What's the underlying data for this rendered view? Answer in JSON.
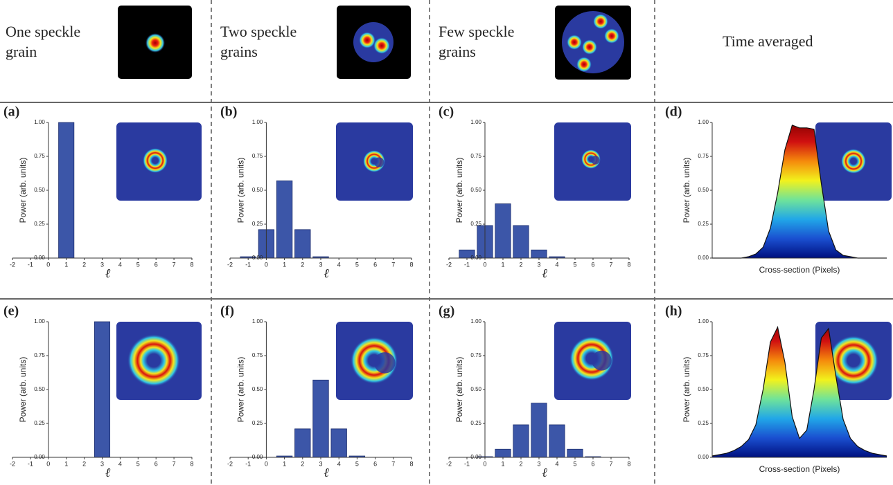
{
  "header": {
    "columns": [
      {
        "lines": [
          "One speckle",
          "grain"
        ]
      },
      {
        "lines": [
          "Two speckle",
          "grains"
        ]
      },
      {
        "lines": [
          "Few speckle",
          "grains"
        ]
      },
      {
        "lines": [
          "Time averaged"
        ]
      }
    ]
  },
  "chart_data": [
    {
      "type": "bar",
      "label": "(a)",
      "x": [
        1
      ],
      "values": [
        1.0
      ],
      "color": "#3c56a8",
      "xlim": [
        -2,
        8
      ],
      "xticks": [
        -2,
        -1,
        0,
        1,
        2,
        3,
        4,
        5,
        6,
        7,
        8
      ],
      "ylim": [
        0,
        1
      ],
      "yticks": [
        {
          "value": 0,
          "label": "0.00"
        },
        {
          "value": 0.25,
          "label": "0.25"
        },
        {
          "value": 0.5,
          "label": "0.50"
        },
        {
          "value": 0.75,
          "label": "0.75"
        },
        {
          "value": 1,
          "label": "1.00"
        }
      ],
      "xlabel": "ℓ",
      "ylabel": "Power (arb. units)"
    },
    {
      "type": "bar",
      "label": "(b)",
      "x": [
        -1,
        0,
        1,
        2,
        3
      ],
      "values": [
        0.01,
        0.21,
        0.57,
        0.21,
        0.01
      ],
      "color": "#3c56a8",
      "xlim": [
        -2,
        8
      ],
      "xticks": [
        -2,
        -1,
        0,
        1,
        2,
        3,
        4,
        5,
        6,
        7,
        8
      ],
      "ylim": [
        0,
        1
      ],
      "yticks": [
        {
          "value": 0,
          "label": "0.00"
        },
        {
          "value": 0.25,
          "label": "0.25"
        },
        {
          "value": 0.5,
          "label": "0.50"
        },
        {
          "value": 0.75,
          "label": "0.75"
        },
        {
          "value": 1,
          "label": "1.00"
        }
      ],
      "xlabel": "ℓ",
      "ylabel": "Power (arb. units)"
    },
    {
      "type": "bar",
      "label": "(c)",
      "x": [
        -1,
        0,
        1,
        2,
        3,
        4
      ],
      "values": [
        0.06,
        0.24,
        0.4,
        0.24,
        0.06,
        0.01
      ],
      "color": "#3c56a8",
      "xlim": [
        -2,
        8
      ],
      "xticks": [
        -2,
        -1,
        0,
        1,
        2,
        3,
        4,
        5,
        6,
        7,
        8
      ],
      "ylim": [
        0,
        1
      ],
      "yticks": [
        {
          "value": 0,
          "label": "0.00"
        },
        {
          "value": 0.25,
          "label": "0.25"
        },
        {
          "value": 0.5,
          "label": "0.50"
        },
        {
          "value": 0.75,
          "label": "0.75"
        },
        {
          "value": 1,
          "label": "1.00"
        }
      ],
      "xlabel": "ℓ",
      "ylabel": "Power (arb. units)"
    },
    {
      "type": "area",
      "label": "(d)",
      "values": [
        0,
        0,
        0,
        0,
        0,
        0.01,
        0.03,
        0.08,
        0.22,
        0.48,
        0.8,
        0.98,
        0.96,
        0.96,
        0.95,
        0.55,
        0.2,
        0.06,
        0.02,
        0.01,
        0,
        0,
        0,
        0,
        0
      ],
      "gradient": [
        "#00107f",
        "#1a4fd0",
        "#21a7e8",
        "#6fe39a",
        "#f2f21c",
        "#f58a0c",
        "#d01010",
        "#8a0000"
      ],
      "ylim": [
        0,
        1
      ],
      "yticks": [
        {
          "value": 0,
          "label": "0.00"
        },
        {
          "value": 0.25,
          "label": "0.25"
        },
        {
          "value": 0.5,
          "label": "0.50"
        },
        {
          "value": 0.75,
          "label": "0.75"
        },
        {
          "value": 1,
          "label": "1.00"
        }
      ],
      "xlabel": "Cross-section (Pixels)",
      "ylabel": "Power (arb. units)"
    },
    {
      "type": "bar",
      "label": "(e)",
      "x": [
        3
      ],
      "values": [
        1.0
      ],
      "color": "#3c56a8",
      "xlim": [
        -2,
        8
      ],
      "xticks": [
        -2,
        -1,
        0,
        1,
        2,
        3,
        4,
        5,
        6,
        7,
        8
      ],
      "ylim": [
        0,
        1
      ],
      "yticks": [
        {
          "value": 0,
          "label": "0.00"
        },
        {
          "value": 0.25,
          "label": "0.25"
        },
        {
          "value": 0.5,
          "label": "0.50"
        },
        {
          "value": 0.75,
          "label": "0.75"
        },
        {
          "value": 1,
          "label": "1.00"
        }
      ],
      "xlabel": "ℓ",
      "ylabel": "Power (arb. units)"
    },
    {
      "type": "bar",
      "label": "(f)",
      "x": [
        1,
        2,
        3,
        4,
        5
      ],
      "values": [
        0.01,
        0.21,
        0.57,
        0.21,
        0.01
      ],
      "color": "#3c56a8",
      "xlim": [
        -2,
        8
      ],
      "xticks": [
        -2,
        -1,
        0,
        1,
        2,
        3,
        4,
        5,
        6,
        7,
        8
      ],
      "ylim": [
        0,
        1
      ],
      "yticks": [
        {
          "value": 0,
          "label": "0.00"
        },
        {
          "value": 0.25,
          "label": "0.25"
        },
        {
          "value": 0.5,
          "label": "0.50"
        },
        {
          "value": 0.75,
          "label": "0.75"
        },
        {
          "value": 1,
          "label": "1.00"
        }
      ],
      "xlabel": "ℓ",
      "ylabel": "Power (arb. units)"
    },
    {
      "type": "bar",
      "label": "(g)",
      "x": [
        0,
        1,
        2,
        3,
        4,
        5,
        6
      ],
      "values": [
        0.005,
        0.06,
        0.24,
        0.4,
        0.24,
        0.06,
        0.005
      ],
      "color": "#3c56a8",
      "xlim": [
        -2,
        8
      ],
      "xticks": [
        -2,
        -1,
        0,
        1,
        2,
        3,
        4,
        5,
        6,
        7,
        8
      ],
      "ylim": [
        0,
        1
      ],
      "yticks": [
        {
          "value": 0,
          "label": "0.00"
        },
        {
          "value": 0.25,
          "label": "0.25"
        },
        {
          "value": 0.5,
          "label": "0.50"
        },
        {
          "value": 0.75,
          "label": "0.75"
        },
        {
          "value": 1,
          "label": "1.00"
        }
      ],
      "xlabel": "ℓ",
      "ylabel": "Power (arb. units)"
    },
    {
      "type": "area",
      "label": "(h)",
      "values": [
        0.01,
        0.02,
        0.03,
        0.05,
        0.08,
        0.13,
        0.24,
        0.5,
        0.85,
        0.96,
        0.7,
        0.3,
        0.14,
        0.2,
        0.5,
        0.88,
        0.95,
        0.6,
        0.28,
        0.14,
        0.08,
        0.05,
        0.03,
        0.02,
        0.01
      ],
      "gradient": [
        "#00107f",
        "#1a4fd0",
        "#21a7e8",
        "#6fe39a",
        "#f2f21c",
        "#f58a0c",
        "#d01010",
        "#8a0000"
      ],
      "ylim": [
        0,
        1
      ],
      "yticks": [
        {
          "value": 0,
          "label": "0.00"
        },
        {
          "value": 0.25,
          "label": "0.25"
        },
        {
          "value": 0.5,
          "label": "0.50"
        },
        {
          "value": 0.75,
          "label": "0.75"
        },
        {
          "value": 1,
          "label": "1.00"
        }
      ],
      "xlabel": "Cross-section (Pixels)",
      "ylabel": "Power (arb. units)"
    }
  ]
}
